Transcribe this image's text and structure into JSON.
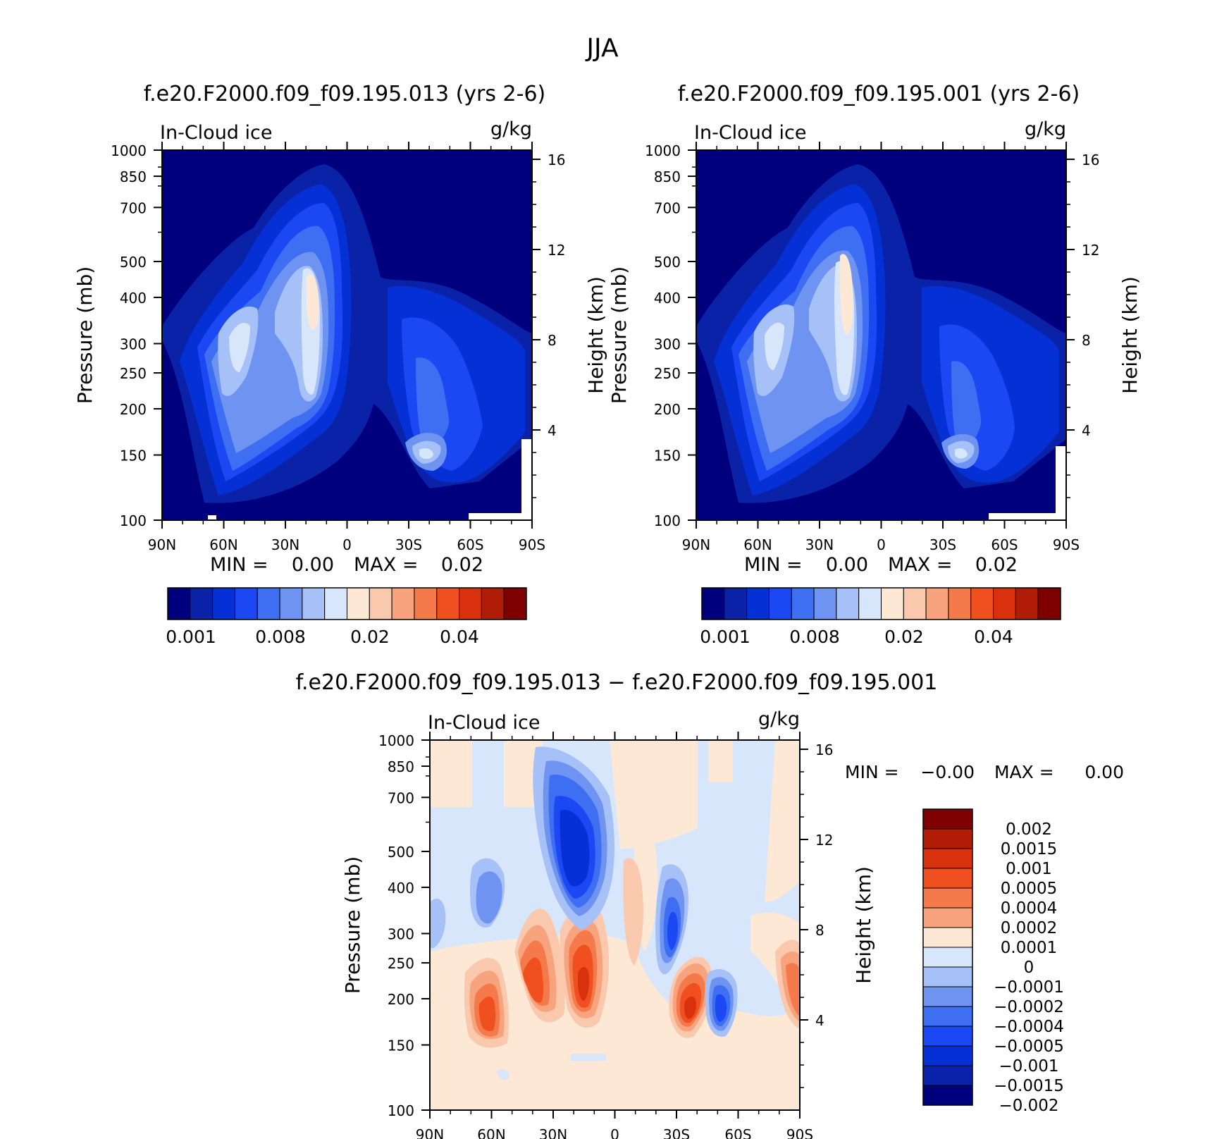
{
  "figure_title": "JJA",
  "chart_data": [
    {
      "type": "heatmap",
      "plot_kind": "latitude-pressure contour",
      "title": "f.e20.F2000.f09_f09.195.013 (yrs 2-6)",
      "left_label": "In-Cloud ice",
      "units": "g/kg",
      "ylabel": "Pressure (mb)",
      "right_ylabel": "Height (km)",
      "x_ticks": [
        "90N",
        "60N",
        "30N",
        "0",
        "30S",
        "60S",
        "90S"
      ],
      "y_ticks": [
        "100",
        "150",
        "200",
        "250",
        "300",
        "400",
        "500",
        "700",
        "850",
        "1000"
      ],
      "height_ticks": [
        "16",
        "12",
        "8",
        "4"
      ],
      "min_text": "MIN =",
      "min_value": "0.00",
      "max_text": "MAX =",
      "max_value": "0.02",
      "colorbar_labels": [
        "0.001",
        "0.008",
        "0.02",
        "0.04"
      ]
    },
    {
      "type": "heatmap",
      "plot_kind": "latitude-pressure contour",
      "title": "f.e20.F2000.f09_f09.195.001 (yrs 2-6)",
      "left_label": "In-Cloud ice",
      "units": "g/kg",
      "ylabel": "Pressure (mb)",
      "right_ylabel": "Height (km)",
      "x_ticks": [
        "90N",
        "60N",
        "30N",
        "0",
        "30S",
        "60S",
        "90S"
      ],
      "y_ticks": [
        "100",
        "150",
        "200",
        "250",
        "300",
        "400",
        "500",
        "700",
        "850",
        "1000"
      ],
      "height_ticks": [
        "16",
        "12",
        "8",
        "4"
      ],
      "min_text": "MIN =",
      "min_value": "0.00",
      "max_text": "MAX =",
      "max_value": "0.02",
      "colorbar_labels": [
        "0.001",
        "0.008",
        "0.02",
        "0.04"
      ]
    },
    {
      "type": "heatmap",
      "plot_kind": "latitude-pressure difference contour",
      "title": "f.e20.F2000.f09_f09.195.013 − f.e20.F2000.f09_f09.195.001",
      "left_label": "In-Cloud ice",
      "units": "g/kg",
      "ylabel": "Pressure (mb)",
      "right_ylabel": "Height (km)",
      "x_ticks": [
        "90N",
        "60N",
        "30N",
        "0",
        "30S",
        "60S",
        "90S"
      ],
      "y_ticks": [
        "100",
        "150",
        "200",
        "250",
        "300",
        "400",
        "500",
        "700",
        "850",
        "1000"
      ],
      "height_ticks": [
        "16",
        "12",
        "8",
        "4"
      ],
      "min_text": "MIN =",
      "min_value": "−0.00",
      "max_text": "MAX =",
      "max_value": "0.00",
      "colorbar_labels": [
        "0.002",
        "0.0015",
        "0.001",
        "0.0005",
        "0.0004",
        "0.0002",
        "0.0001",
        "0",
        "−0.0001",
        "−0.0002",
        "−0.0004",
        "−0.0005",
        "−0.001",
        "−0.0015",
        "−0.002"
      ]
    }
  ],
  "colors": {
    "seq_palette": [
      "#00007f",
      "#0a22a8",
      "#0530d6",
      "#1c48f4",
      "#3e6ef2",
      "#6f93f0",
      "#a6c0f8",
      "#d8e6fb",
      "#fde8d6",
      "#fac8ac",
      "#f7a47e",
      "#f47a4c",
      "#f0501f",
      "#d9310e",
      "#b01c08",
      "#7f0000"
    ],
    "diff_palette": [
      "#7f0000",
      "#b01c08",
      "#d9310e",
      "#f0501f",
      "#f47a4c",
      "#f7a47e",
      "#fde8d6",
      "#d8e6fb",
      "#a6c0f8",
      "#6f93f0",
      "#3e6ef2",
      "#1c48f4",
      "#0530d6",
      "#0a22a8",
      "#00007f"
    ]
  }
}
